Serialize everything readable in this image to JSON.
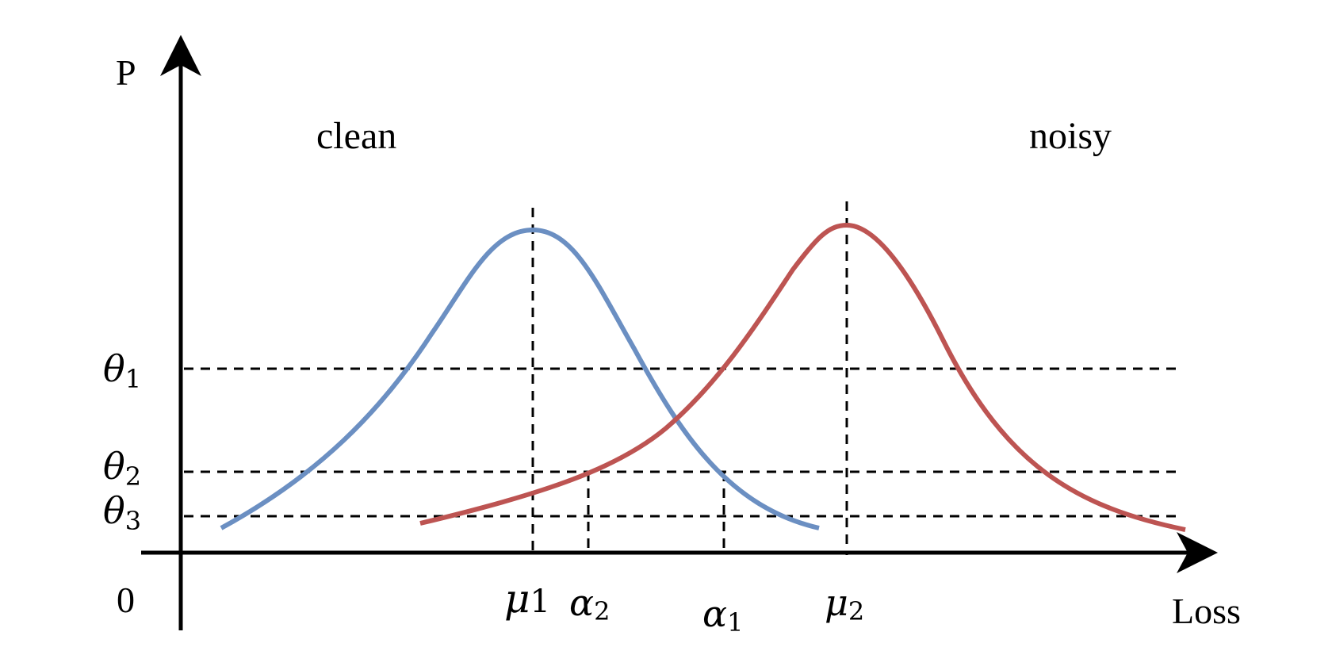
{
  "axes": {
    "y_label": "P",
    "x_label": "Loss",
    "origin_label": "0"
  },
  "regions": {
    "left": "clean",
    "right": "noisy"
  },
  "thresholds": [
    {
      "symbol": "θ",
      "sub": "1"
    },
    {
      "symbol": "θ",
      "sub": "2"
    },
    {
      "symbol": "θ",
      "sub": "3"
    }
  ],
  "markers": {
    "mu1": {
      "symbol": "μ",
      "sub": "1"
    },
    "alpha2": {
      "symbol": "α",
      "sub": "2"
    },
    "alpha1": {
      "symbol": "α",
      "sub": "1"
    },
    "mu2": {
      "symbol": "μ",
      "sub": "2"
    }
  },
  "curves": {
    "clean_color": "#6b8fc2",
    "noisy_color": "#bd5452"
  }
}
